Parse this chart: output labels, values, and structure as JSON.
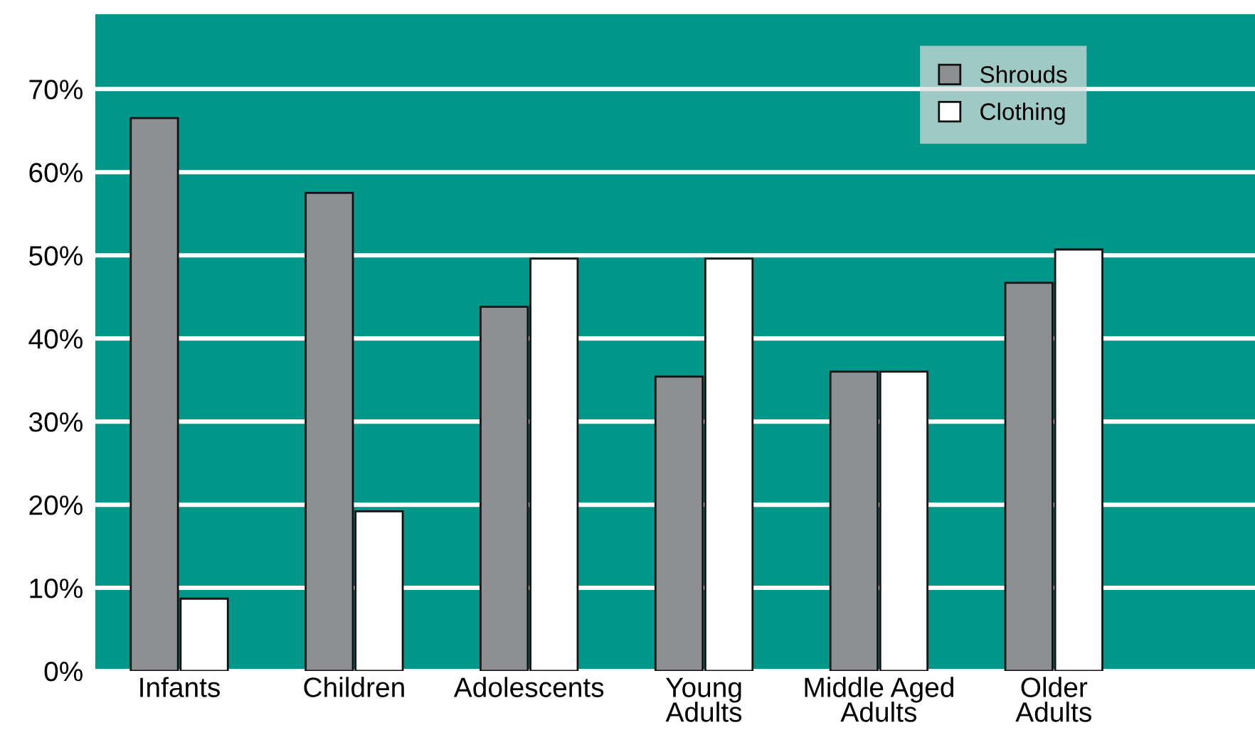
{
  "chart_data": {
    "type": "bar",
    "categories": [
      "Infants",
      "Children",
      "Adolescents",
      "Young\nAdults",
      "Middle Aged\nAdults",
      "Older\nAdults"
    ],
    "series": [
      {
        "name": "Shrouds",
        "color": "#8e8f92",
        "values": [
          66.5,
          57.5,
          43.8,
          35.4,
          36.0,
          46.7
        ]
      },
      {
        "name": "Clothing",
        "color": "#ffffff",
        "values": [
          8.7,
          19.2,
          49.6,
          49.6,
          36.0,
          50.7
        ]
      }
    ],
    "ylim": [
      0,
      79
    ],
    "yticks": [
      {
        "value": 0,
        "label": "0%"
      },
      {
        "value": 10,
        "label": "10%"
      },
      {
        "value": 20,
        "label": "20%"
      },
      {
        "value": 30,
        "label": "30%"
      },
      {
        "value": 40,
        "label": "40%"
      },
      {
        "value": 50,
        "label": "50%"
      },
      {
        "value": 60,
        "label": "60%"
      },
      {
        "value": 70,
        "label": "70%"
      }
    ],
    "grid": "y",
    "legend": "top right"
  }
}
